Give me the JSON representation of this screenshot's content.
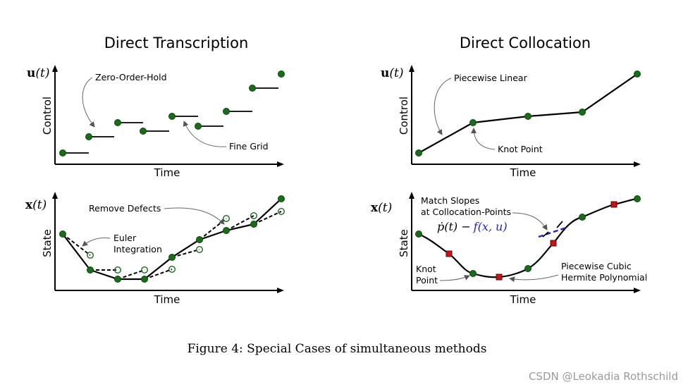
{
  "panels": {
    "transcription": {
      "title": "Direct Transcription",
      "control_ylabel": "Control",
      "control_yvar": "u(t)",
      "control_xlabel": "Time",
      "annot_zoh": "Zero-Order-Hold",
      "annot_fine_grid": "Fine Grid",
      "state_ylabel": "State",
      "state_yvar": "x(t)",
      "state_xlabel": "Time",
      "annot_remove_defects": "Remove Defects",
      "annot_euler_1": "Euler",
      "annot_euler_2": "Integration"
    },
    "collocation": {
      "title": "Direct Collocation",
      "control_ylabel": "Control",
      "control_yvar": "u(t)",
      "control_xlabel": "Time",
      "annot_piecewise_linear": "Piecewise Linear",
      "annot_knot_point": "Knot Point",
      "state_ylabel": "State",
      "state_yvar": "x(t)",
      "state_xlabel": "Time",
      "annot_match_1": "Match Slopes",
      "annot_match_2": "at Collocation-Points",
      "eq_lhs": "ṗ(t) −",
      "eq_rhs": "f(x, u)",
      "annot_knot_1": "Knot",
      "annot_knot_2": "Point",
      "annot_hermite_1": "Piecewise Cubic",
      "annot_hermite_2": "Hermite Polynomial"
    }
  },
  "caption": "Figure 4: Special Cases of simultaneous methods",
  "watermark": "CSDN @Leokadia Rothschild",
  "colors": {
    "knot_green": "#1a6b1a",
    "collocation_red": "#c41414",
    "slope_blue": "#2222cc"
  }
}
